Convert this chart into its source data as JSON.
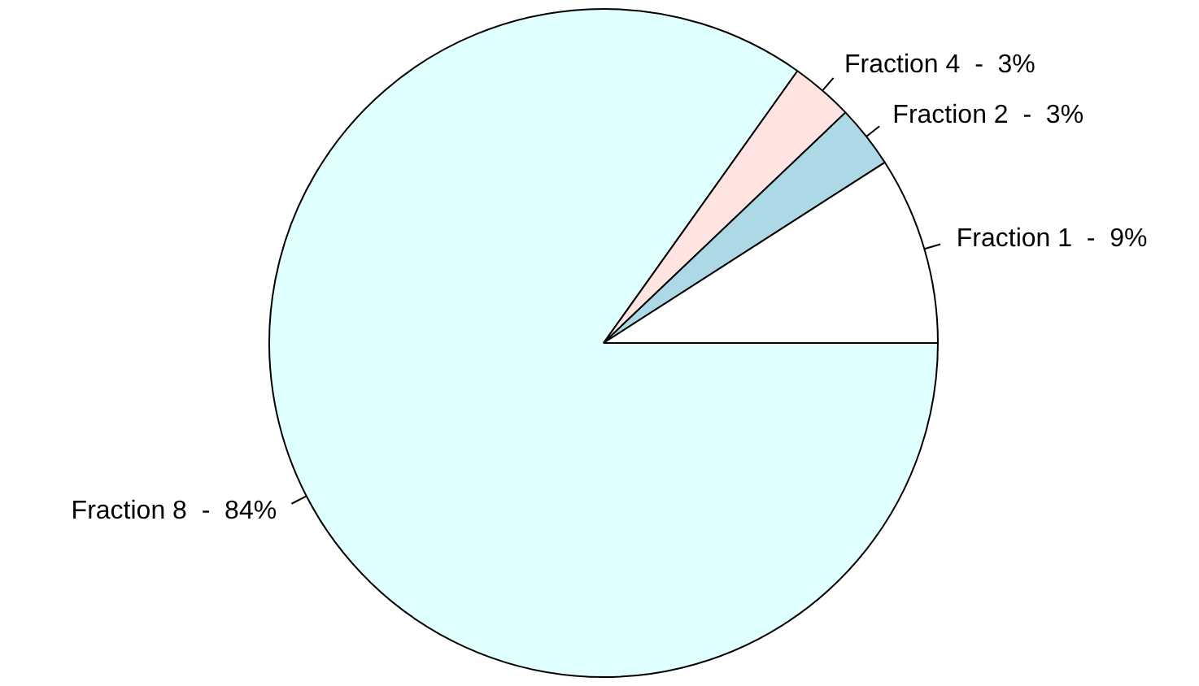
{
  "chart_data": {
    "type": "pie",
    "categories": [
      "Fraction 1  -  9%",
      "Fraction 2  -  3%",
      "Fraction 4  -  3%",
      "Fraction 8  -  84%"
    ],
    "values": [
      9,
      3,
      3,
      84
    ],
    "colors": [
      "#ffffff",
      "#add8e6",
      "#ffe4e1",
      "#e0ffff"
    ],
    "legend": false
  }
}
